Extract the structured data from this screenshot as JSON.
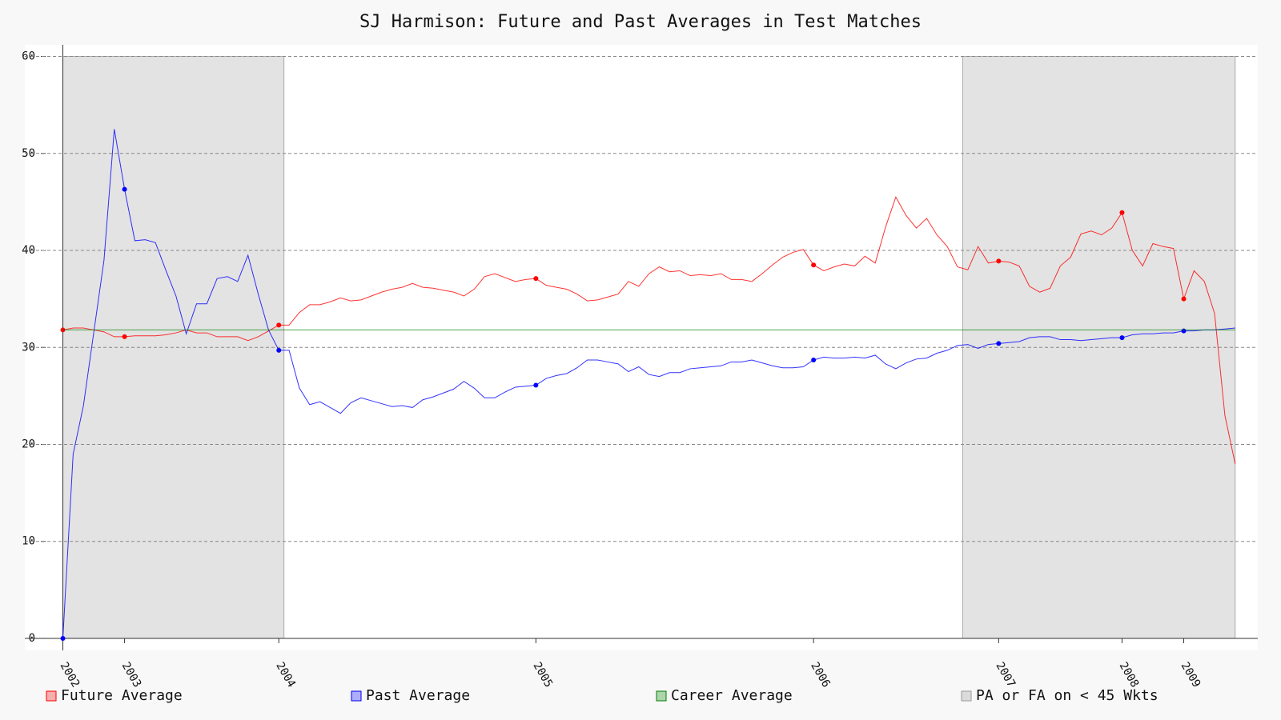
{
  "chart_data": {
    "type": "line",
    "title": "SJ Harmison: Future and Past Averages in Test Matches",
    "xlim": [
      -3.7,
      116.2
    ],
    "ylim": [
      -1.24,
      61.2
    ],
    "yticks": [
      0,
      10,
      20,
      30,
      40,
      50,
      60
    ],
    "xticks": [
      {
        "value": 0,
        "label": "2002"
      },
      {
        "value": 6,
        "label": "2003"
      },
      {
        "value": 21,
        "label": "2004"
      },
      {
        "value": 46,
        "label": "2005"
      },
      {
        "value": 73,
        "label": "2006"
      },
      {
        "value": 91,
        "label": "2007"
      },
      {
        "value": 103,
        "label": "2008"
      },
      {
        "value": 109,
        "label": "2009"
      }
    ],
    "grid": true,
    "legend": "bottom",
    "series": [
      {
        "name": "Future Average",
        "color": "#ff0000",
        "values": [
          31.8,
          32.0,
          32.0,
          31.8,
          31.6,
          31.1,
          31.1,
          31.2,
          31.2,
          31.2,
          31.3,
          31.5,
          31.8,
          31.5,
          31.5,
          31.1,
          31.1,
          31.1,
          30.7,
          31.1,
          31.7,
          32.3,
          32.3,
          33.6,
          34.4,
          34.4,
          34.7,
          35.1,
          34.8,
          34.9,
          35.3,
          35.7,
          36.0,
          36.2,
          36.6,
          36.2,
          36.1,
          35.9,
          35.7,
          35.3,
          36.0,
          37.3,
          37.6,
          37.2,
          36.8,
          37.0,
          37.1,
          36.4,
          36.2,
          36.0,
          35.5,
          34.8,
          34.9,
          35.2,
          35.5,
          36.8,
          36.3,
          37.6,
          38.3,
          37.8,
          37.9,
          37.4,
          37.5,
          37.4,
          37.6,
          37.0,
          37.0,
          36.8,
          37.6,
          38.5,
          39.3,
          39.8,
          40.1,
          38.5,
          37.9,
          38.3,
          38.6,
          38.4,
          39.4,
          38.7,
          42.4,
          45.5,
          43.6,
          42.3,
          43.3,
          41.6,
          40.4,
          38.3,
          38.0,
          40.4,
          38.7,
          38.9,
          38.8,
          38.4,
          36.3,
          35.7,
          36.1,
          38.4,
          39.3,
          41.7,
          42.0,
          41.6,
          42.3,
          43.9,
          40.0,
          38.4,
          40.7,
          40.4,
          40.2,
          35.0,
          37.9,
          36.8,
          33.5,
          23.0,
          18.0
        ]
      },
      {
        "name": "Past Average",
        "color": "#0000ff",
        "values": [
          0,
          19,
          24,
          31.5,
          39,
          52.5,
          46.3,
          41,
          41.1,
          40.8,
          38,
          35.3,
          31.4,
          34.5,
          34.5,
          37.1,
          37.3,
          36.8,
          39.5,
          35.5,
          31.8,
          29.7,
          29.7,
          25.8,
          24.1,
          24.4,
          23.8,
          23.2,
          24.3,
          24.8,
          24.5,
          24.2,
          23.9,
          24.0,
          23.8,
          24.6,
          24.9,
          25.3,
          25.7,
          26.5,
          25.8,
          24.8,
          24.8,
          25.4,
          25.9,
          26.0,
          26.1,
          26.8,
          27.1,
          27.3,
          27.9,
          28.7,
          28.7,
          28.5,
          28.3,
          27.5,
          28.0,
          27.2,
          27.0,
          27.4,
          27.4,
          27.8,
          27.9,
          28.0,
          28.1,
          28.5,
          28.5,
          28.7,
          28.4,
          28.1,
          27.9,
          27.9,
          28.0,
          28.7,
          29.0,
          28.9,
          28.9,
          29.0,
          28.9,
          29.2,
          28.3,
          27.8,
          28.4,
          28.8,
          28.9,
          29.4,
          29.7,
          30.2,
          30.3,
          29.9,
          30.3,
          30.4,
          30.5,
          30.6,
          31.0,
          31.1,
          31.1,
          30.8,
          30.8,
          30.7,
          30.8,
          30.9,
          31.0,
          31.0,
          31.3,
          31.4,
          31.4,
          31.5,
          31.5,
          31.7,
          31.7,
          31.8,
          31.8,
          31.9,
          32.0
        ]
      },
      {
        "name": "Career Average",
        "color": "#008000",
        "value": 31.8
      }
    ],
    "regions": {
      "name": "PA or FA on < 45 Wkts",
      "color": "#e3e3e3",
      "spans": [
        [
          0,
          21.5
        ],
        [
          87.5,
          114
        ]
      ],
      "span_top": 60
    }
  }
}
